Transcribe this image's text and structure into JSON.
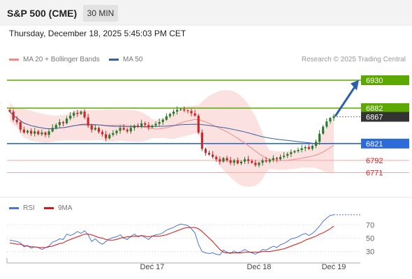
{
  "header": {
    "title": "S&P 500 (CME)",
    "timeframe": "30 MIN"
  },
  "datetime": "Thursday, December 18, 2025 5:45:03 PM CET",
  "legend": {
    "items": [
      {
        "label": "MA 20 + Bollinger Bands",
        "color": "#f08a8a"
      },
      {
        "label": "MA 50",
        "color": "#3a5fa0"
      }
    ]
  },
  "credit": "Research © 2025 Trading Central",
  "rsi_legend": {
    "items": [
      {
        "label": "RSI",
        "color": "#4a76d6"
      },
      {
        "label": "9MA",
        "color": "#e01010"
      }
    ]
  },
  "colors": {
    "up": "#2c7a2c",
    "down": "#c82828",
    "resistance": "#5aa800",
    "support": "#2d6bd8",
    "lower": "#cc2222",
    "current": "#333333",
    "forecast_arrow": "#2a5faa"
  },
  "chart_data": {
    "type": "candlestick",
    "price_range": [
      6750,
      6948
    ],
    "x_labels": [
      "Dec 17",
      "Dec 18",
      "Dec 19"
    ],
    "levels": [
      {
        "value": 6930,
        "label": "6930",
        "kind": "resistance"
      },
      {
        "value": 6882,
        "label": "6882",
        "kind": "resistance"
      },
      {
        "value": 6867,
        "label": "6867",
        "kind": "current"
      },
      {
        "value": 6821,
        "label": "6821",
        "kind": "support"
      },
      {
        "value": 6792,
        "label": "6792",
        "kind": "lower"
      },
      {
        "value": 6771,
        "label": "6771",
        "kind": "lower"
      }
    ],
    "closes": [
      6876,
      6862,
      6858,
      6845,
      6840,
      6843,
      6838,
      6842,
      6837,
      6840,
      6836,
      6842,
      6848,
      6853,
      6858,
      6856,
      6864,
      6869,
      6874,
      6872,
      6876,
      6866,
      6852,
      6845,
      6848,
      6841,
      6837,
      6830,
      6836,
      6839,
      6843,
      6848,
      6845,
      6842,
      6848,
      6852,
      6850,
      6856,
      6853,
      6849,
      6852,
      6855,
      6858,
      6862,
      6868,
      6872,
      6876,
      6879,
      6880,
      6878,
      6877,
      6873,
      6869,
      6840,
      6812,
      6805,
      6802,
      6798,
      6794,
      6790,
      6796,
      6792,
      6788,
      6792,
      6787,
      6790,
      6794,
      6791,
      6788,
      6784,
      6788,
      6792,
      6790,
      6793,
      6796,
      6794,
      6798,
      6800,
      6803,
      6806,
      6808,
      6810,
      6813,
      6815,
      6812,
      6817,
      6824,
      6838,
      6850,
      6859,
      6865,
      6868
    ],
    "rsi": {
      "ticks": [
        70,
        50,
        30
      ],
      "range": [
        15,
        88
      ],
      "rsi_values": [
        47,
        46,
        45,
        43,
        37,
        39,
        35,
        37,
        36,
        33,
        36,
        38,
        44,
        46,
        49,
        48,
        56,
        54,
        56,
        60,
        57,
        61,
        55,
        45,
        49,
        44,
        41,
        45,
        49,
        51,
        52,
        55,
        50,
        48,
        53,
        56,
        52,
        54,
        51,
        48,
        53,
        55,
        56,
        58,
        62,
        64,
        66,
        69,
        71,
        70,
        69,
        64,
        58,
        41,
        30,
        28,
        27,
        28,
        26,
        25,
        32,
        29,
        27,
        31,
        28,
        30,
        33,
        30,
        28,
        26,
        29,
        33,
        32,
        35,
        38,
        36,
        40,
        42,
        45,
        49,
        50,
        52,
        55,
        57,
        54,
        57,
        62,
        68,
        75,
        80,
        84,
        85
      ],
      "ma_values": [
        43,
        42,
        41,
        41,
        39,
        38,
        37,
        37,
        36,
        36,
        36,
        37,
        38,
        40,
        42,
        43,
        46,
        48,
        50,
        52,
        54,
        56,
        56,
        55,
        53,
        51,
        50,
        48,
        47,
        47,
        48,
        50,
        51,
        52,
        52,
        53,
        53,
        54,
        53,
        52,
        53,
        53,
        53,
        54,
        55,
        57,
        59,
        61,
        63,
        65,
        66,
        66,
        66,
        64,
        60,
        55,
        50,
        45,
        39,
        33,
        29,
        28,
        28,
        28,
        28,
        28,
        29,
        29,
        29,
        29,
        29,
        30,
        30,
        30,
        31,
        32,
        33,
        34,
        36,
        38,
        40,
        42,
        44,
        47,
        49,
        51,
        53,
        56,
        58,
        61,
        64,
        68
      ]
    }
  }
}
